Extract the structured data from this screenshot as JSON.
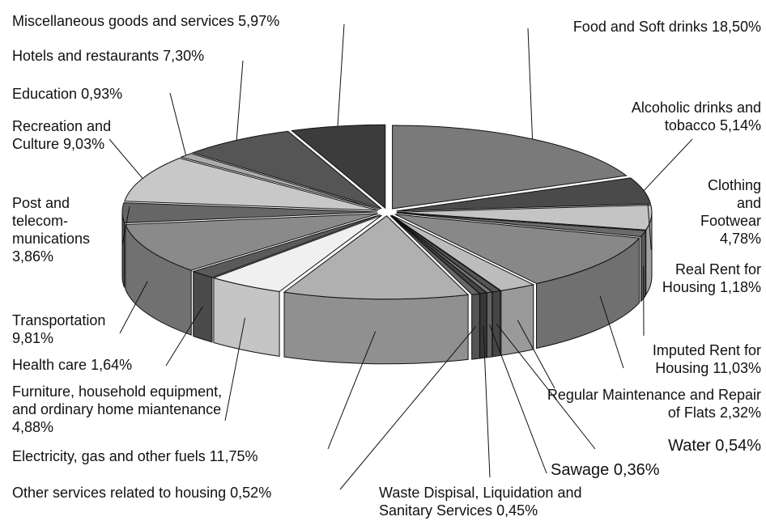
{
  "chart_data": {
    "type": "pie",
    "categories": [
      "Food and Soft drinks",
      "Alcoholic drinks and tobacco",
      "Clothing and Footwear",
      "Real Rent for Housing",
      "Imputed Rent for Housing",
      "Regular Maintenance and Repair of Flats",
      "Water",
      "Sawage",
      "Waste Dispisal, Liquidation and Sanitary Services",
      "Other services related to housing",
      "Electricity, gas and other fuels",
      "Furniture, household equipment, and ordinary home miantenance",
      "Health care",
      "Transportation",
      "Post and telecom­munications",
      "Recreation and Culture",
      "Education",
      "Hotels and restaurants",
      "Miscellaneous goods and services"
    ],
    "values": [
      18.5,
      5.14,
      4.78,
      1.18,
      11.03,
      2.32,
      0.54,
      0.36,
      0.45,
      0.52,
      11.75,
      4.88,
      1.64,
      9.81,
      3.86,
      9.03,
      0.93,
      7.3,
      5.97
    ],
    "value_labels": [
      "18,50%",
      "5,14%",
      "4,78%",
      "1,18%",
      "11,03%",
      "2,32%",
      "0,54%",
      "0,36%",
      "0,45%",
      "0,52%",
      "11,75%",
      "4,88%",
      "1,64%",
      "9,81%",
      "3,86%",
      "9,03%",
      "0,93%",
      "7,30%",
      "5,97%"
    ],
    "colors": [
      "#7a7a7a",
      "#4a4a4a",
      "#c4c4c4",
      "#6a6a6a",
      "#888888",
      "#bcbcbc",
      "#555555",
      "#777777",
      "#444444",
      "#666666",
      "#b0b0b0",
      "#f0f0f0",
      "#5a5a5a",
      "#8a8a8a",
      "#666666",
      "#c8c8c8",
      "#aaaaaa",
      "#555555",
      "#3c3c3c"
    ]
  }
}
